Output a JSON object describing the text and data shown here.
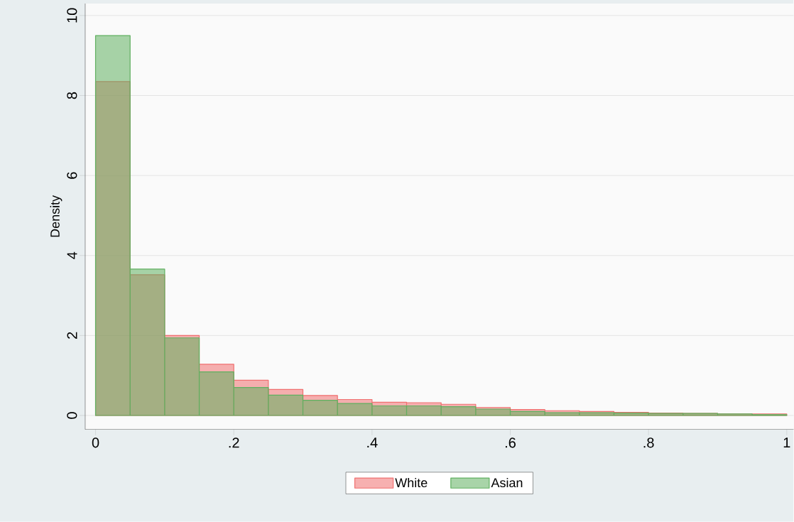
{
  "chart_data": {
    "type": "histogram",
    "ylabel": "Density",
    "bins": [
      0,
      0.05,
      0.1,
      0.15,
      0.2,
      0.25,
      0.3,
      0.35,
      0.4,
      0.45,
      0.5,
      0.55,
      0.6,
      0.65,
      0.7,
      0.75,
      0.8,
      0.85,
      0.9,
      0.95,
      1
    ],
    "series": [
      {
        "name": "White",
        "color": "#f07070",
        "values": [
          8.35,
          3.52,
          2.0,
          1.28,
          0.88,
          0.65,
          0.5,
          0.4,
          0.33,
          0.32,
          0.28,
          0.2,
          0.15,
          0.12,
          0.1,
          0.08,
          0.06,
          0.05,
          0.04,
          0.04
        ]
      },
      {
        "name": "Asian",
        "color": "#60b060",
        "values": [
          9.5,
          3.66,
          1.94,
          1.09,
          0.7,
          0.51,
          0.38,
          0.3,
          0.24,
          0.24,
          0.22,
          0.16,
          0.1,
          0.07,
          0.07,
          0.06,
          0.05,
          0.05,
          0.04,
          0.02
        ]
      }
    ],
    "xlim": [
      -0.015,
      1.01
    ],
    "ylim": [
      -0.35,
      10.3
    ],
    "xticks": [
      0,
      {
        "value": 0.2,
        "label": ".2"
      },
      {
        "value": 0.4,
        "label": ".4"
      },
      {
        "value": 0.6,
        "label": ".6"
      },
      {
        "value": 0.8,
        "label": ".8"
      },
      1
    ],
    "yticks": [
      0,
      2,
      4,
      6,
      8,
      10
    ],
    "grid": "y",
    "legend": "bottom"
  }
}
